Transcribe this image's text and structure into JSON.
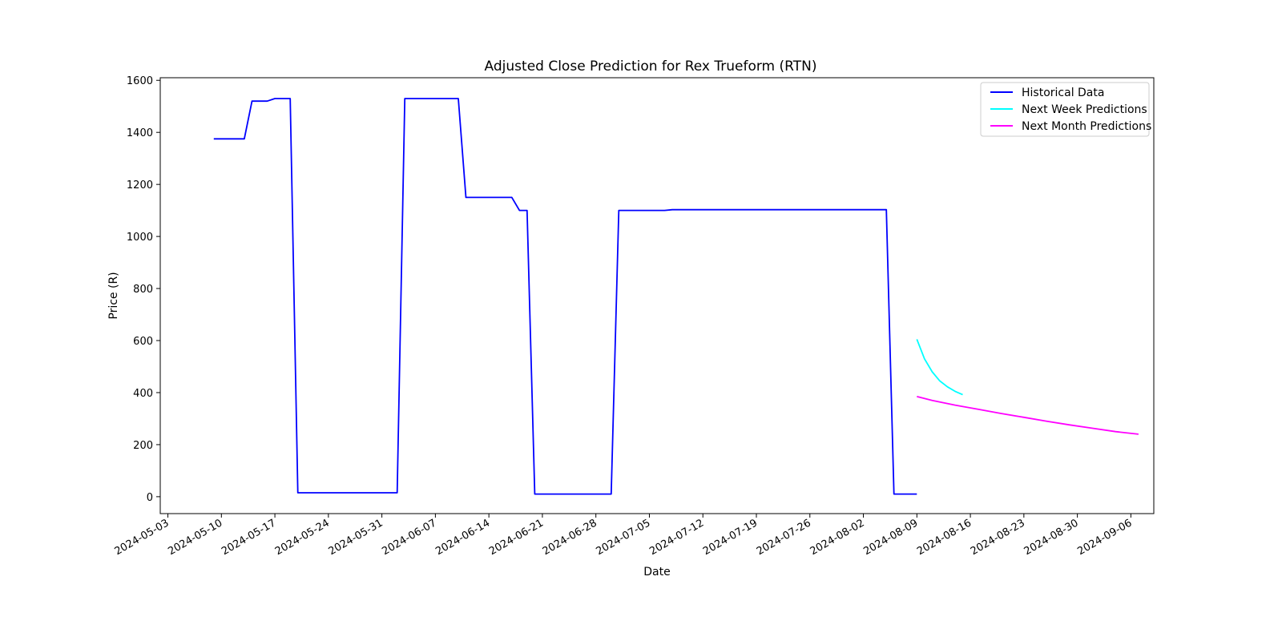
{
  "chart_data": {
    "type": "line",
    "title": "Adjusted Close Prediction for Rex Trueform (RTN)",
    "xlabel": "Date",
    "ylabel": "Price (R)",
    "xlim": [
      "2024-05-02",
      "2024-09-09"
    ],
    "ylim": [
      -65,
      1610
    ],
    "x_ticks": [
      "2024-05-03",
      "2024-05-10",
      "2024-05-17",
      "2024-05-24",
      "2024-05-31",
      "2024-06-07",
      "2024-06-14",
      "2024-06-21",
      "2024-06-28",
      "2024-07-05",
      "2024-07-12",
      "2024-07-19",
      "2024-07-26",
      "2024-08-02",
      "2024-08-09",
      "2024-08-16",
      "2024-08-23",
      "2024-08-30",
      "2024-09-06"
    ],
    "y_ticks": [
      0,
      200,
      400,
      600,
      800,
      1000,
      1200,
      1400,
      1600
    ],
    "legend_position": "top-right",
    "grid": false,
    "series": [
      {
        "name": "Historical Data",
        "color": "#0000ff",
        "points": [
          [
            "2024-05-09",
            1375
          ],
          [
            "2024-05-10",
            1375
          ],
          [
            "2024-05-13",
            1375
          ],
          [
            "2024-05-14",
            1520
          ],
          [
            "2024-05-15",
            1520
          ],
          [
            "2024-05-16",
            1520
          ],
          [
            "2024-05-17",
            1530
          ],
          [
            "2024-05-18",
            1530
          ],
          [
            "2024-05-19",
            1530
          ],
          [
            "2024-05-20",
            15
          ],
          [
            "2024-05-21",
            15
          ],
          [
            "2024-05-24",
            15
          ],
          [
            "2024-05-27",
            15
          ],
          [
            "2024-05-28",
            15
          ],
          [
            "2024-05-31",
            15
          ],
          [
            "2024-06-02",
            15
          ],
          [
            "2024-06-03",
            1530
          ],
          [
            "2024-06-04",
            1530
          ],
          [
            "2024-06-07",
            1530
          ],
          [
            "2024-06-10",
            1530
          ],
          [
            "2024-06-11",
            1150
          ],
          [
            "2024-06-14",
            1150
          ],
          [
            "2024-06-17",
            1150
          ],
          [
            "2024-06-18",
            1100
          ],
          [
            "2024-06-19",
            1100
          ],
          [
            "2024-06-20",
            10
          ],
          [
            "2024-06-21",
            10
          ],
          [
            "2024-06-24",
            10
          ],
          [
            "2024-06-27",
            10
          ],
          [
            "2024-06-30",
            10
          ],
          [
            "2024-07-01",
            1100
          ],
          [
            "2024-07-02",
            1100
          ],
          [
            "2024-07-07",
            1100
          ],
          [
            "2024-07-08",
            1103
          ],
          [
            "2024-07-12",
            1103
          ],
          [
            "2024-07-19",
            1103
          ],
          [
            "2024-07-26",
            1103
          ],
          [
            "2024-08-02",
            1103
          ],
          [
            "2024-08-05",
            1103
          ],
          [
            "2024-08-06",
            10
          ],
          [
            "2024-08-08",
            10
          ],
          [
            "2024-08-09",
            10
          ]
        ]
      },
      {
        "name": "Next Week Predictions",
        "color": "#00ffff",
        "points": [
          [
            "2024-08-09",
            605
          ],
          [
            "2024-08-10",
            530
          ],
          [
            "2024-08-11",
            480
          ],
          [
            "2024-08-12",
            445
          ],
          [
            "2024-08-13",
            422
          ],
          [
            "2024-08-14",
            405
          ],
          [
            "2024-08-15",
            392
          ]
        ]
      },
      {
        "name": "Next Month Predictions",
        "color": "#ff00ff",
        "points": [
          [
            "2024-08-09",
            385
          ],
          [
            "2024-08-11",
            370
          ],
          [
            "2024-08-14",
            352
          ],
          [
            "2024-08-17",
            336
          ],
          [
            "2024-08-20",
            320
          ],
          [
            "2024-08-23",
            305
          ],
          [
            "2024-08-26",
            290
          ],
          [
            "2024-08-29",
            276
          ],
          [
            "2024-09-01",
            263
          ],
          [
            "2024-09-04",
            250
          ],
          [
            "2024-09-07",
            240
          ]
        ]
      }
    ]
  }
}
